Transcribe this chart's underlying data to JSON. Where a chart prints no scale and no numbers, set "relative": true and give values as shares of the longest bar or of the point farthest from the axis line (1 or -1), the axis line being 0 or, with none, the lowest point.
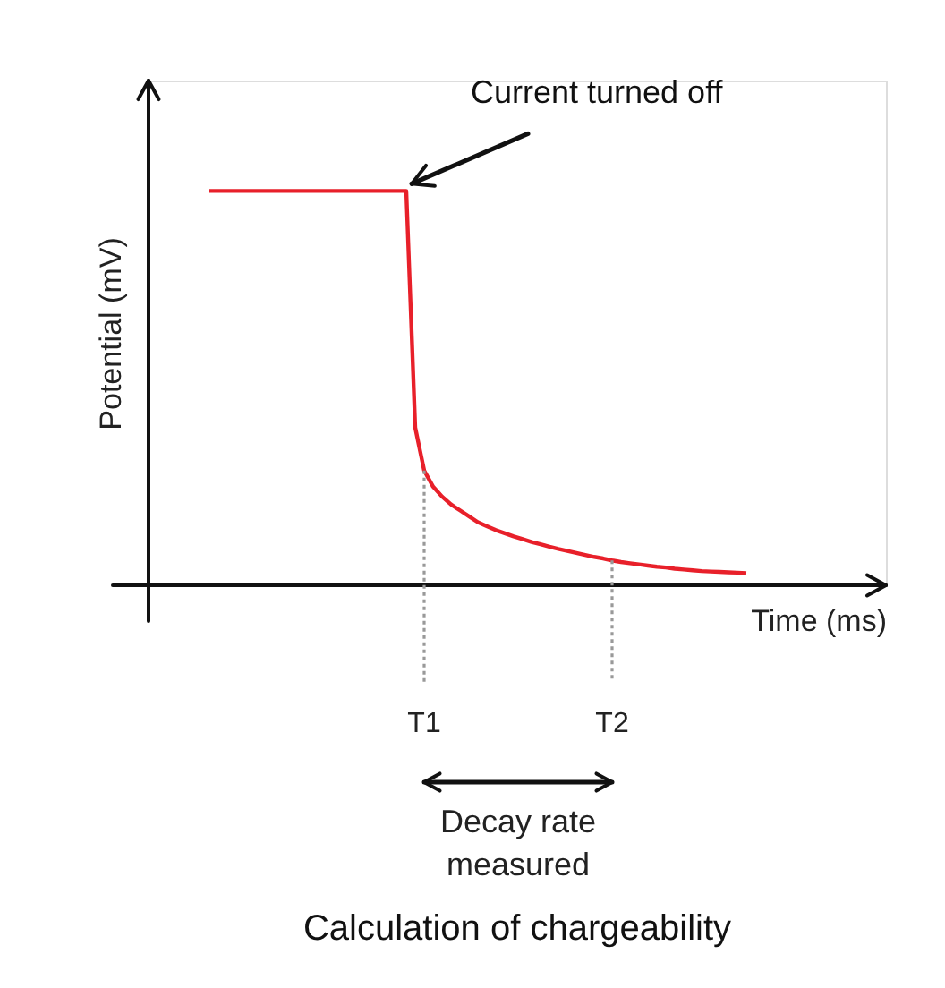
{
  "chart_data": {
    "type": "line",
    "title": "Calculation of chargeability",
    "xlabel": "Time (ms)",
    "ylabel": "Potential (mV)",
    "relative": true,
    "categories": [
      null,
      null,
      null,
      null,
      null,
      null,
      null,
      null,
      null,
      null,
      null,
      null,
      null,
      null,
      null,
      null,
      null,
      null,
      null,
      null,
      null,
      null,
      null,
      null,
      null,
      null,
      null,
      null,
      null,
      null,
      null,
      null,
      null,
      null,
      null,
      null,
      null,
      null,
      null,
      null,
      null,
      null,
      null,
      null,
      null,
      null,
      null,
      null,
      null,
      null,
      null,
      null,
      null,
      null,
      null,
      null,
      null,
      null,
      null,
      null,
      null
    ],
    "tick_labels": false,
    "grid": false,
    "marker": "none",
    "series": [
      {
        "color": "#e8202a",
        "values": [
          1,
          1,
          1,
          1,
          1,
          1,
          1,
          1,
          1,
          1,
          1,
          1,
          1,
          1,
          1,
          1,
          1,
          1,
          1,
          1,
          1,
          1,
          1,
          0.4,
          0.291,
          0.25,
          0.225,
          0.205,
          0.19,
          0.175,
          0.16,
          0.15,
          0.14,
          0.132,
          0.124,
          0.117,
          0.11,
          0.104,
          0.098,
          0.092,
          0.087,
          0.082,
          0.077,
          0.072,
          0.068,
          0.063,
          0.059,
          0.056,
          0.053,
          0.05,
          0.047,
          0.045,
          0.042,
          0.04,
          0.038,
          0.036,
          0.035,
          0.034,
          0.033,
          0.032,
          0.031
        ]
      }
    ],
    "annotations": [
      "Current turned off",
      "T1",
      "T2",
      "Decay rate measured"
    ]
  }
}
